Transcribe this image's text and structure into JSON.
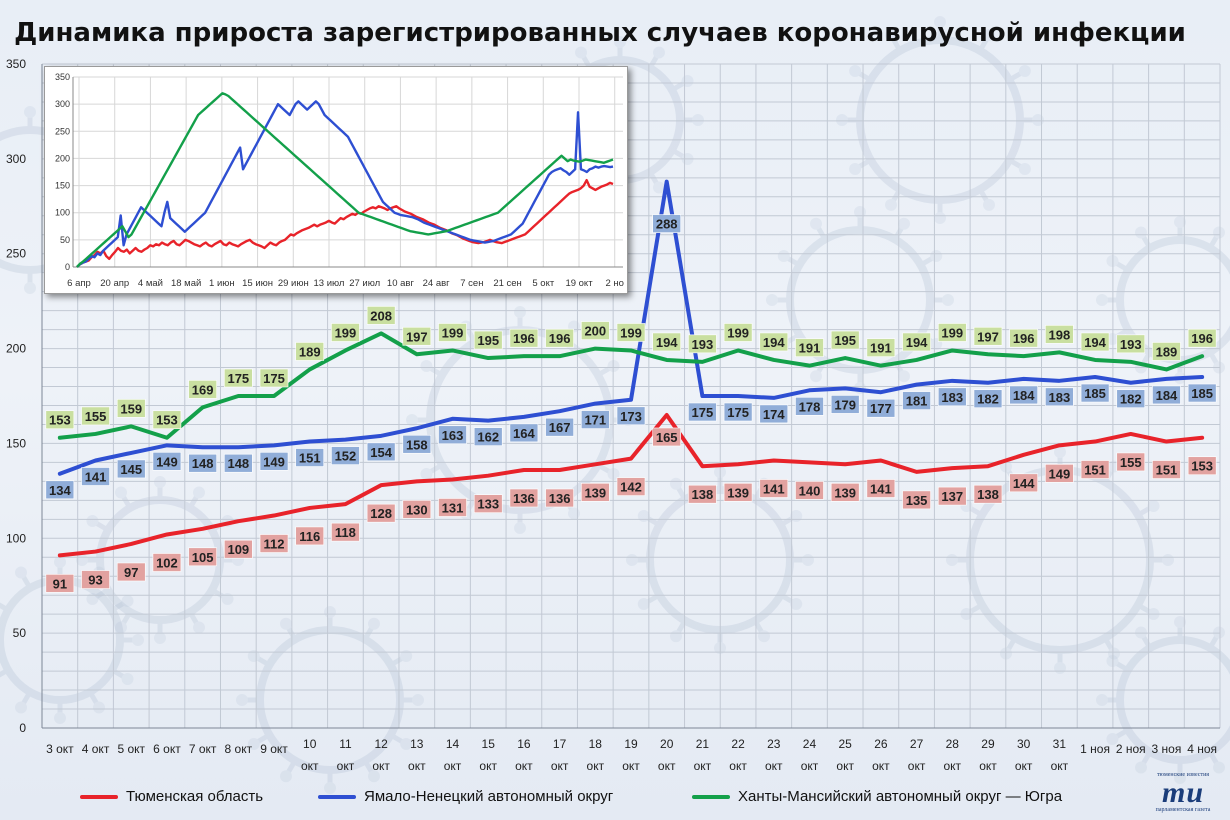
{
  "chart_title": "Динамика прироста зарегистрированных случаев коронавирусной инфекции",
  "colors": {
    "red": "#e8232a",
    "blue": "#2e4fd2",
    "green": "#13a04a",
    "red_label": "#e2a2a0",
    "blue_label": "#90add8",
    "green_label": "#c9dfa0"
  },
  "chart_data": [
    {
      "type": "line",
      "categories": [
        "3 окт",
        "4 окт",
        "5 окт",
        "6 окт",
        "7 окт",
        "8 окт",
        "9 окт",
        "10 окт",
        "11 окт",
        "12 окт",
        "13 окт",
        "14 окт",
        "15 окт",
        "16 окт",
        "17 окт",
        "18 окт",
        "19 окт",
        "20 окт",
        "21 окт",
        "22 окт",
        "23 окт",
        "24 окт",
        "25 окт",
        "26 окт",
        "27 окт",
        "28 окт",
        "29 окт",
        "30 окт",
        "31 окт",
        "1 ноя",
        "2 ноя",
        "3 ноя",
        "4 ноя"
      ],
      "ylim": [
        0,
        350
      ],
      "yticks": [
        0,
        50,
        100,
        150,
        200,
        250,
        300,
        350
      ],
      "grid": true,
      "legend_position": "bottom",
      "series": [
        {
          "name": "Тюменская область",
          "color": "red",
          "values": [
            91,
            93,
            97,
            102,
            105,
            109,
            112,
            116,
            118,
            128,
            130,
            131,
            133,
            136,
            136,
            139,
            142,
            165,
            138,
            139,
            141,
            140,
            139,
            141,
            135,
            137,
            138,
            144,
            149,
            151,
            155,
            151,
            153
          ]
        },
        {
          "name": "Ямало-Ненецкий автономный округ",
          "color": "blue",
          "values": [
            134,
            141,
            145,
            149,
            148,
            148,
            149,
            151,
            152,
            154,
            158,
            163,
            162,
            164,
            167,
            171,
            173,
            288,
            175,
            175,
            174,
            178,
            179,
            177,
            181,
            183,
            182,
            184,
            183,
            185,
            182,
            184,
            185
          ]
        },
        {
          "name": "Ханты-Мансийский автономный округ — Югра",
          "color": "green",
          "values": [
            153,
            155,
            159,
            153,
            169,
            175,
            175,
            189,
            199,
            208,
            197,
            199,
            195,
            196,
            196,
            200,
            199,
            194,
            193,
            199,
            194,
            191,
            195,
            191,
            194,
            199,
            197,
            196,
            198,
            194,
            193,
            189,
            196
          ]
        }
      ]
    },
    {
      "type": "line",
      "ylim": [
        0,
        350
      ],
      "yticks": [
        0,
        50,
        100,
        150,
        200,
        250,
        300,
        350
      ],
      "xtick_labels": [
        "6 апр",
        "20 апр",
        "4 май",
        "18 май",
        "1 июн",
        "15 июн",
        "29 июн",
        "13 июл",
        "27 июл",
        "10 авг",
        "24 авг",
        "7 сен",
        "21 сен",
        "5 окт",
        "19 окт",
        "2 но"
      ],
      "grid": true,
      "series": [
        {
          "color": "red",
          "values": [
            0,
            5,
            8,
            10,
            12,
            18,
            22,
            28,
            25,
            30,
            20,
            15,
            22,
            28,
            35,
            30,
            28,
            32,
            25,
            30,
            35,
            30,
            28,
            32,
            35,
            40,
            38,
            42,
            40,
            45,
            42,
            40,
            45,
            48,
            42,
            40,
            45,
            50,
            48,
            45,
            42,
            40,
            38,
            42,
            45,
            40,
            38,
            42,
            45,
            48,
            42,
            40,
            45,
            42,
            40,
            38,
            42,
            45,
            48,
            50,
            45,
            42,
            40,
            38,
            35,
            40,
            45,
            42,
            40,
            45,
            48,
            50,
            55,
            60,
            58,
            62,
            65,
            68,
            70,
            72,
            75,
            78,
            75,
            78,
            80,
            82,
            85,
            82,
            80,
            85,
            90,
            88,
            92,
            95,
            98,
            96,
            100,
            98,
            102,
            105,
            108,
            110,
            108,
            112,
            110,
            108,
            105,
            108,
            110,
            112,
            108,
            105,
            102,
            100,
            98,
            95,
            92,
            90,
            88,
            85,
            82,
            80,
            78,
            75,
            72,
            70,
            68,
            65,
            62,
            60,
            58,
            55,
            52,
            50,
            48,
            46,
            45,
            44,
            45,
            46,
            48,
            50,
            48,
            46,
            45,
            44,
            46,
            48,
            50,
            52,
            54,
            56,
            58,
            60,
            65,
            70,
            75,
            80,
            85,
            90,
            95,
            100,
            105,
            110,
            115,
            120,
            125,
            130,
            135,
            138,
            140,
            142,
            145,
            150,
            160,
            148,
            145,
            142,
            145,
            148,
            150,
            152,
            155,
            153
          ]
        },
        {
          "color": "blue",
          "values": [
            0,
            5,
            8,
            10,
            15,
            20,
            18,
            25,
            22,
            30,
            35,
            40,
            45,
            50,
            55,
            95,
            40,
            60,
            70,
            80,
            90,
            100,
            110,
            105,
            100,
            95,
            90,
            85,
            80,
            75,
            100,
            120,
            90,
            85,
            80,
            75,
            70,
            65,
            70,
            75,
            80,
            85,
            90,
            95,
            100,
            110,
            120,
            130,
            140,
            150,
            160,
            170,
            180,
            190,
            200,
            210,
            220,
            180,
            190,
            200,
            210,
            220,
            230,
            240,
            250,
            260,
            270,
            280,
            290,
            300,
            295,
            290,
            285,
            280,
            290,
            300,
            305,
            300,
            295,
            290,
            295,
            300,
            305,
            300,
            290,
            280,
            275,
            270,
            265,
            260,
            255,
            250,
            245,
            240,
            230,
            220,
            210,
            200,
            190,
            180,
            170,
            160,
            150,
            140,
            130,
            120,
            115,
            110,
            105,
            100,
            98,
            96,
            95,
            94,
            93,
            92,
            90,
            88,
            85,
            82,
            80,
            78,
            76,
            74,
            72,
            70,
            68,
            66,
            64,
            62,
            60,
            58,
            56,
            54,
            52,
            50,
            49,
            48,
            47,
            46,
            45,
            46,
            47,
            48,
            50,
            52,
            54,
            56,
            58,
            60,
            65,
            70,
            75,
            80,
            90,
            100,
            110,
            120,
            130,
            140,
            150,
            160,
            170,
            175,
            178,
            180,
            182,
            178,
            175,
            170,
            175,
            180,
            285,
            180,
            178,
            175,
            180,
            182,
            185,
            183,
            185,
            186,
            185,
            184,
            185
          ]
        },
        {
          "color": "green",
          "values": [
            0,
            6,
            10,
            15,
            20,
            25,
            30,
            35,
            40,
            45,
            50,
            55,
            60,
            65,
            70,
            75,
            65,
            55,
            60,
            70,
            80,
            90,
            100,
            110,
            120,
            130,
            140,
            150,
            160,
            170,
            180,
            190,
            200,
            210,
            220,
            230,
            240,
            250,
            260,
            270,
            280,
            285,
            290,
            295,
            300,
            305,
            310,
            315,
            320,
            318,
            315,
            310,
            305,
            300,
            295,
            290,
            285,
            280,
            275,
            270,
            265,
            260,
            255,
            250,
            245,
            240,
            235,
            230,
            225,
            220,
            215,
            210,
            205,
            200,
            195,
            190,
            185,
            180,
            175,
            170,
            165,
            160,
            155,
            150,
            145,
            140,
            135,
            130,
            125,
            120,
            115,
            110,
            105,
            100,
            98,
            96,
            94,
            92,
            90,
            88,
            86,
            84,
            82,
            80,
            78,
            76,
            74,
            72,
            70,
            68,
            66,
            65,
            64,
            63,
            62,
            61,
            60,
            61,
            62,
            63,
            64,
            65,
            66,
            68,
            70,
            72,
            74,
            76,
            78,
            80,
            82,
            84,
            86,
            88,
            90,
            92,
            94,
            96,
            98,
            100,
            105,
            110,
            115,
            120,
            125,
            130,
            135,
            140,
            145,
            150,
            155,
            160,
            165,
            170,
            175,
            180,
            185,
            190,
            195,
            200,
            205,
            200,
            195,
            198,
            196,
            195,
            194,
            196,
            198,
            197,
            196,
            195,
            194,
            193,
            192,
            194,
            196,
            198
          ]
        }
      ]
    }
  ],
  "logo": {
    "top": "тюменские известия",
    "mark": "ти",
    "bottom": "парламентская газета"
  }
}
